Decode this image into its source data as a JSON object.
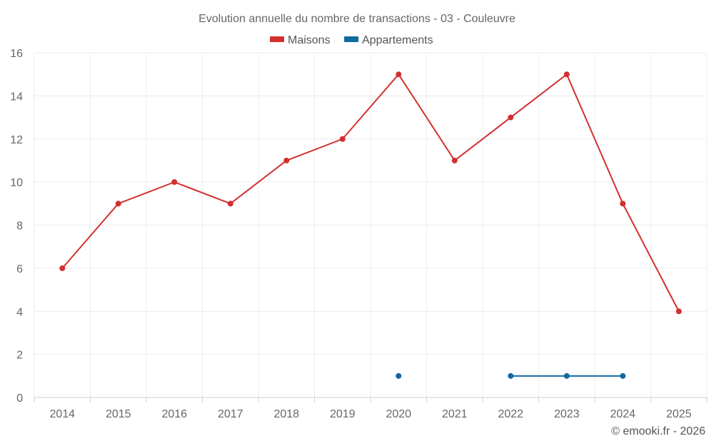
{
  "chart_data": {
    "type": "line",
    "title": "Evolution annuelle du nombre de transactions - 03 - Couleuvre",
    "categories": [
      "2014",
      "2015",
      "2016",
      "2017",
      "2018",
      "2019",
      "2020",
      "2021",
      "2022",
      "2023",
      "2024",
      "2025"
    ],
    "ylim": [
      0,
      16
    ],
    "yticks": [
      0,
      2,
      4,
      6,
      8,
      10,
      12,
      14,
      16
    ],
    "grid": true,
    "legend_position": "top-center",
    "series": [
      {
        "name": "Maisons",
        "color": "#d32f2f",
        "values": [
          6,
          9,
          10,
          9,
          11,
          12,
          15,
          11,
          13,
          15,
          9,
          4
        ]
      },
      {
        "name": "Appartements",
        "color": "#0f6aa0",
        "values": [
          null,
          null,
          null,
          null,
          null,
          null,
          1,
          null,
          1,
          1,
          1,
          null
        ]
      }
    ]
  },
  "credit": "© emooki.fr - 2026"
}
